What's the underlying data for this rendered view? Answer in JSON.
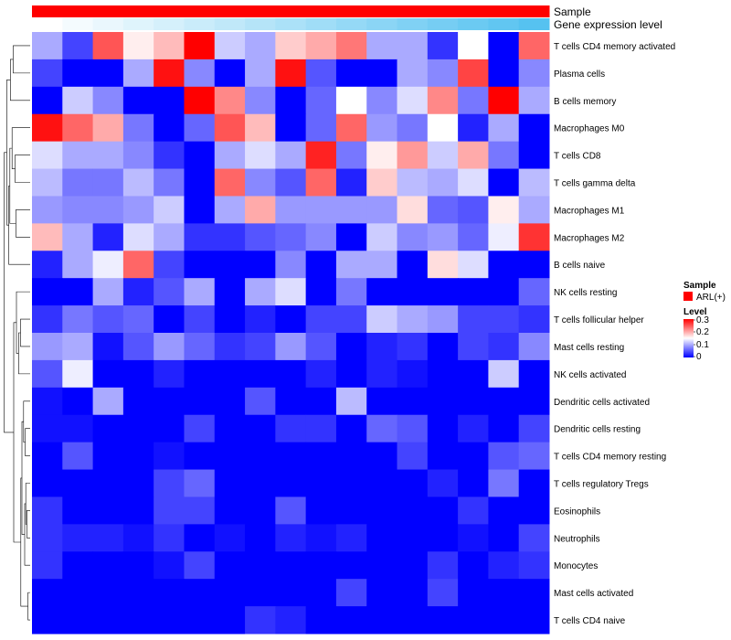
{
  "chart_data": {
    "type": "heatmap",
    "annotations": [
      {
        "label": "Sample",
        "color": "#ff0000"
      },
      {
        "label": "Gene expression level",
        "gradient": [
          "#ffffff",
          "#56c2f0"
        ]
      }
    ],
    "rows": [
      "T cells CD4 memory activated",
      "Plasma cells",
      "B cells memory",
      "Macrophages M0",
      "T cells CD8",
      "T cells gamma delta",
      "Macrophages M1",
      "Macrophages M2",
      "B cells naive",
      "NK cells resting",
      "T cells follicular helper",
      "Mast cells resting",
      "NK cells activated",
      "Dendritic cells activated",
      "Dendritic cells resting",
      "T cells CD4 memory resting",
      "T cells regulatory  Tregs",
      "Eosinophils",
      "Neutrophils",
      "Monocytes",
      "Mast cells activated",
      "T cells CD4 naive"
    ],
    "columns": 17,
    "values": [
      [
        0.1,
        0.04,
        0.25,
        0.16,
        0.19,
        0.3,
        0.12,
        0.1,
        0.18,
        0.2,
        0.23,
        0.1,
        0.1,
        0.03,
        0.15,
        0.0,
        0.24
      ],
      [
        0.04,
        0.0,
        0.0,
        0.1,
        0.29,
        0.08,
        0.0,
        0.1,
        0.29,
        0.05,
        0.0,
        0.0,
        0.1,
        0.08,
        0.26,
        0.0,
        0.08
      ],
      [
        0.0,
        0.12,
        0.08,
        0.0,
        0.0,
        0.3,
        0.22,
        0.08,
        0.0,
        0.06,
        0.15,
        0.08,
        0.13,
        0.22,
        0.07,
        0.3,
        0.1
      ],
      [
        0.29,
        0.24,
        0.2,
        0.07,
        0.0,
        0.06,
        0.25,
        0.19,
        0.0,
        0.06,
        0.24,
        0.09,
        0.07,
        0.15,
        0.02,
        0.1,
        0.0
      ],
      [
        0.13,
        0.1,
        0.1,
        0.08,
        0.03,
        0.0,
        0.1,
        0.13,
        0.1,
        0.28,
        0.07,
        0.16,
        0.21,
        0.12,
        0.2,
        0.07,
        0.0
      ],
      [
        0.11,
        0.07,
        0.07,
        0.11,
        0.07,
        0.0,
        0.24,
        0.08,
        0.05,
        0.24,
        0.02,
        0.18,
        0.11,
        0.1,
        0.13,
        0.0,
        0.11
      ],
      [
        0.09,
        0.08,
        0.08,
        0.09,
        0.12,
        0.0,
        0.1,
        0.2,
        0.09,
        0.09,
        0.09,
        0.09,
        0.17,
        0.06,
        0.05,
        0.16,
        0.1
      ],
      [
        0.19,
        0.1,
        0.02,
        0.13,
        0.1,
        0.03,
        0.03,
        0.05,
        0.06,
        0.08,
        0.0,
        0.12,
        0.08,
        0.09,
        0.06,
        0.14,
        0.27
      ],
      [
        0.02,
        0.1,
        0.14,
        0.24,
        0.04,
        0.0,
        0.0,
        0.0,
        0.08,
        0.0,
        0.1,
        0.1,
        0.0,
        0.17,
        0.13,
        0.0,
        0.0
      ],
      [
        0.0,
        0.0,
        0.1,
        0.02,
        0.05,
        0.1,
        0.0,
        0.1,
        0.13,
        0.0,
        0.07,
        0.0,
        0.0,
        0.0,
        0.0,
        0.0,
        0.06
      ],
      [
        0.03,
        0.07,
        0.05,
        0.06,
        0.0,
        0.04,
        0.0,
        0.02,
        0.0,
        0.04,
        0.04,
        0.12,
        0.1,
        0.09,
        0.04,
        0.04,
        0.03
      ],
      [
        0.09,
        0.1,
        0.01,
        0.05,
        0.09,
        0.06,
        0.03,
        0.04,
        0.09,
        0.05,
        0.0,
        0.02,
        0.03,
        0.0,
        0.04,
        0.03,
        0.08
      ],
      [
        0.05,
        0.14,
        0.0,
        0.0,
        0.02,
        0.0,
        0.0,
        0.0,
        0.0,
        0.02,
        0.0,
        0.02,
        0.01,
        0.0,
        0.0,
        0.12,
        0.0
      ],
      [
        0.01,
        0.0,
        0.1,
        0.0,
        0.0,
        0.0,
        0.0,
        0.05,
        0.0,
        0.0,
        0.11,
        0.0,
        0.0,
        0.0,
        0.0,
        0.0,
        0.0
      ],
      [
        0.01,
        0.01,
        0.0,
        0.0,
        0.0,
        0.04,
        0.0,
        0.0,
        0.03,
        0.03,
        0.0,
        0.06,
        0.05,
        0.0,
        0.02,
        0.0,
        0.04
      ],
      [
        0.0,
        0.05,
        0.0,
        0.0,
        0.01,
        0.0,
        0.0,
        0.0,
        0.0,
        0.0,
        0.0,
        0.0,
        0.04,
        0.0,
        0.0,
        0.05,
        0.06
      ],
      [
        0.0,
        0.0,
        0.0,
        0.0,
        0.04,
        0.06,
        0.0,
        0.0,
        0.0,
        0.0,
        0.0,
        0.0,
        0.0,
        0.02,
        0.0,
        0.07,
        0.0
      ],
      [
        0.03,
        0.0,
        0.0,
        0.0,
        0.04,
        0.04,
        0.0,
        0.0,
        0.05,
        0.0,
        0.0,
        0.0,
        0.0,
        0.0,
        0.03,
        0.0,
        0.0
      ],
      [
        0.03,
        0.02,
        0.02,
        0.01,
        0.03,
        0.0,
        0.01,
        0.0,
        0.02,
        0.01,
        0.02,
        0.0,
        0.0,
        0.0,
        0.01,
        0.0,
        0.04
      ],
      [
        0.03,
        0.0,
        0.0,
        0.0,
        0.01,
        0.04,
        0.0,
        0.0,
        0.0,
        0.0,
        0.0,
        0.0,
        0.0,
        0.03,
        0.0,
        0.02,
        0.03
      ],
      [
        0.0,
        0.0,
        0.0,
        0.0,
        0.0,
        0.0,
        0.0,
        0.0,
        0.0,
        0.0,
        0.04,
        0.0,
        0.0,
        0.04,
        0.0,
        0.0,
        0.0
      ],
      [
        0.0,
        0.0,
        0.0,
        0.0,
        0.0,
        0.0,
        0.0,
        0.03,
        0.02,
        0.0,
        0.0,
        0.0,
        0.0,
        0.0,
        0.0,
        0.0,
        0.0
      ]
    ],
    "color_scale": {
      "min": 0,
      "mid": 0.15,
      "max": 0.3,
      "low": "#0000ff",
      "midColor": "#ffffff",
      "high": "#ff0000"
    },
    "legend": {
      "sample_title": "Sample",
      "sample_item": "ARL(+)",
      "sample_color": "#ff0000",
      "level_title": "Level",
      "level_ticks": [
        "0.3",
        "0.2",
        "0.1",
        "0"
      ]
    },
    "dendrogram": "row"
  }
}
